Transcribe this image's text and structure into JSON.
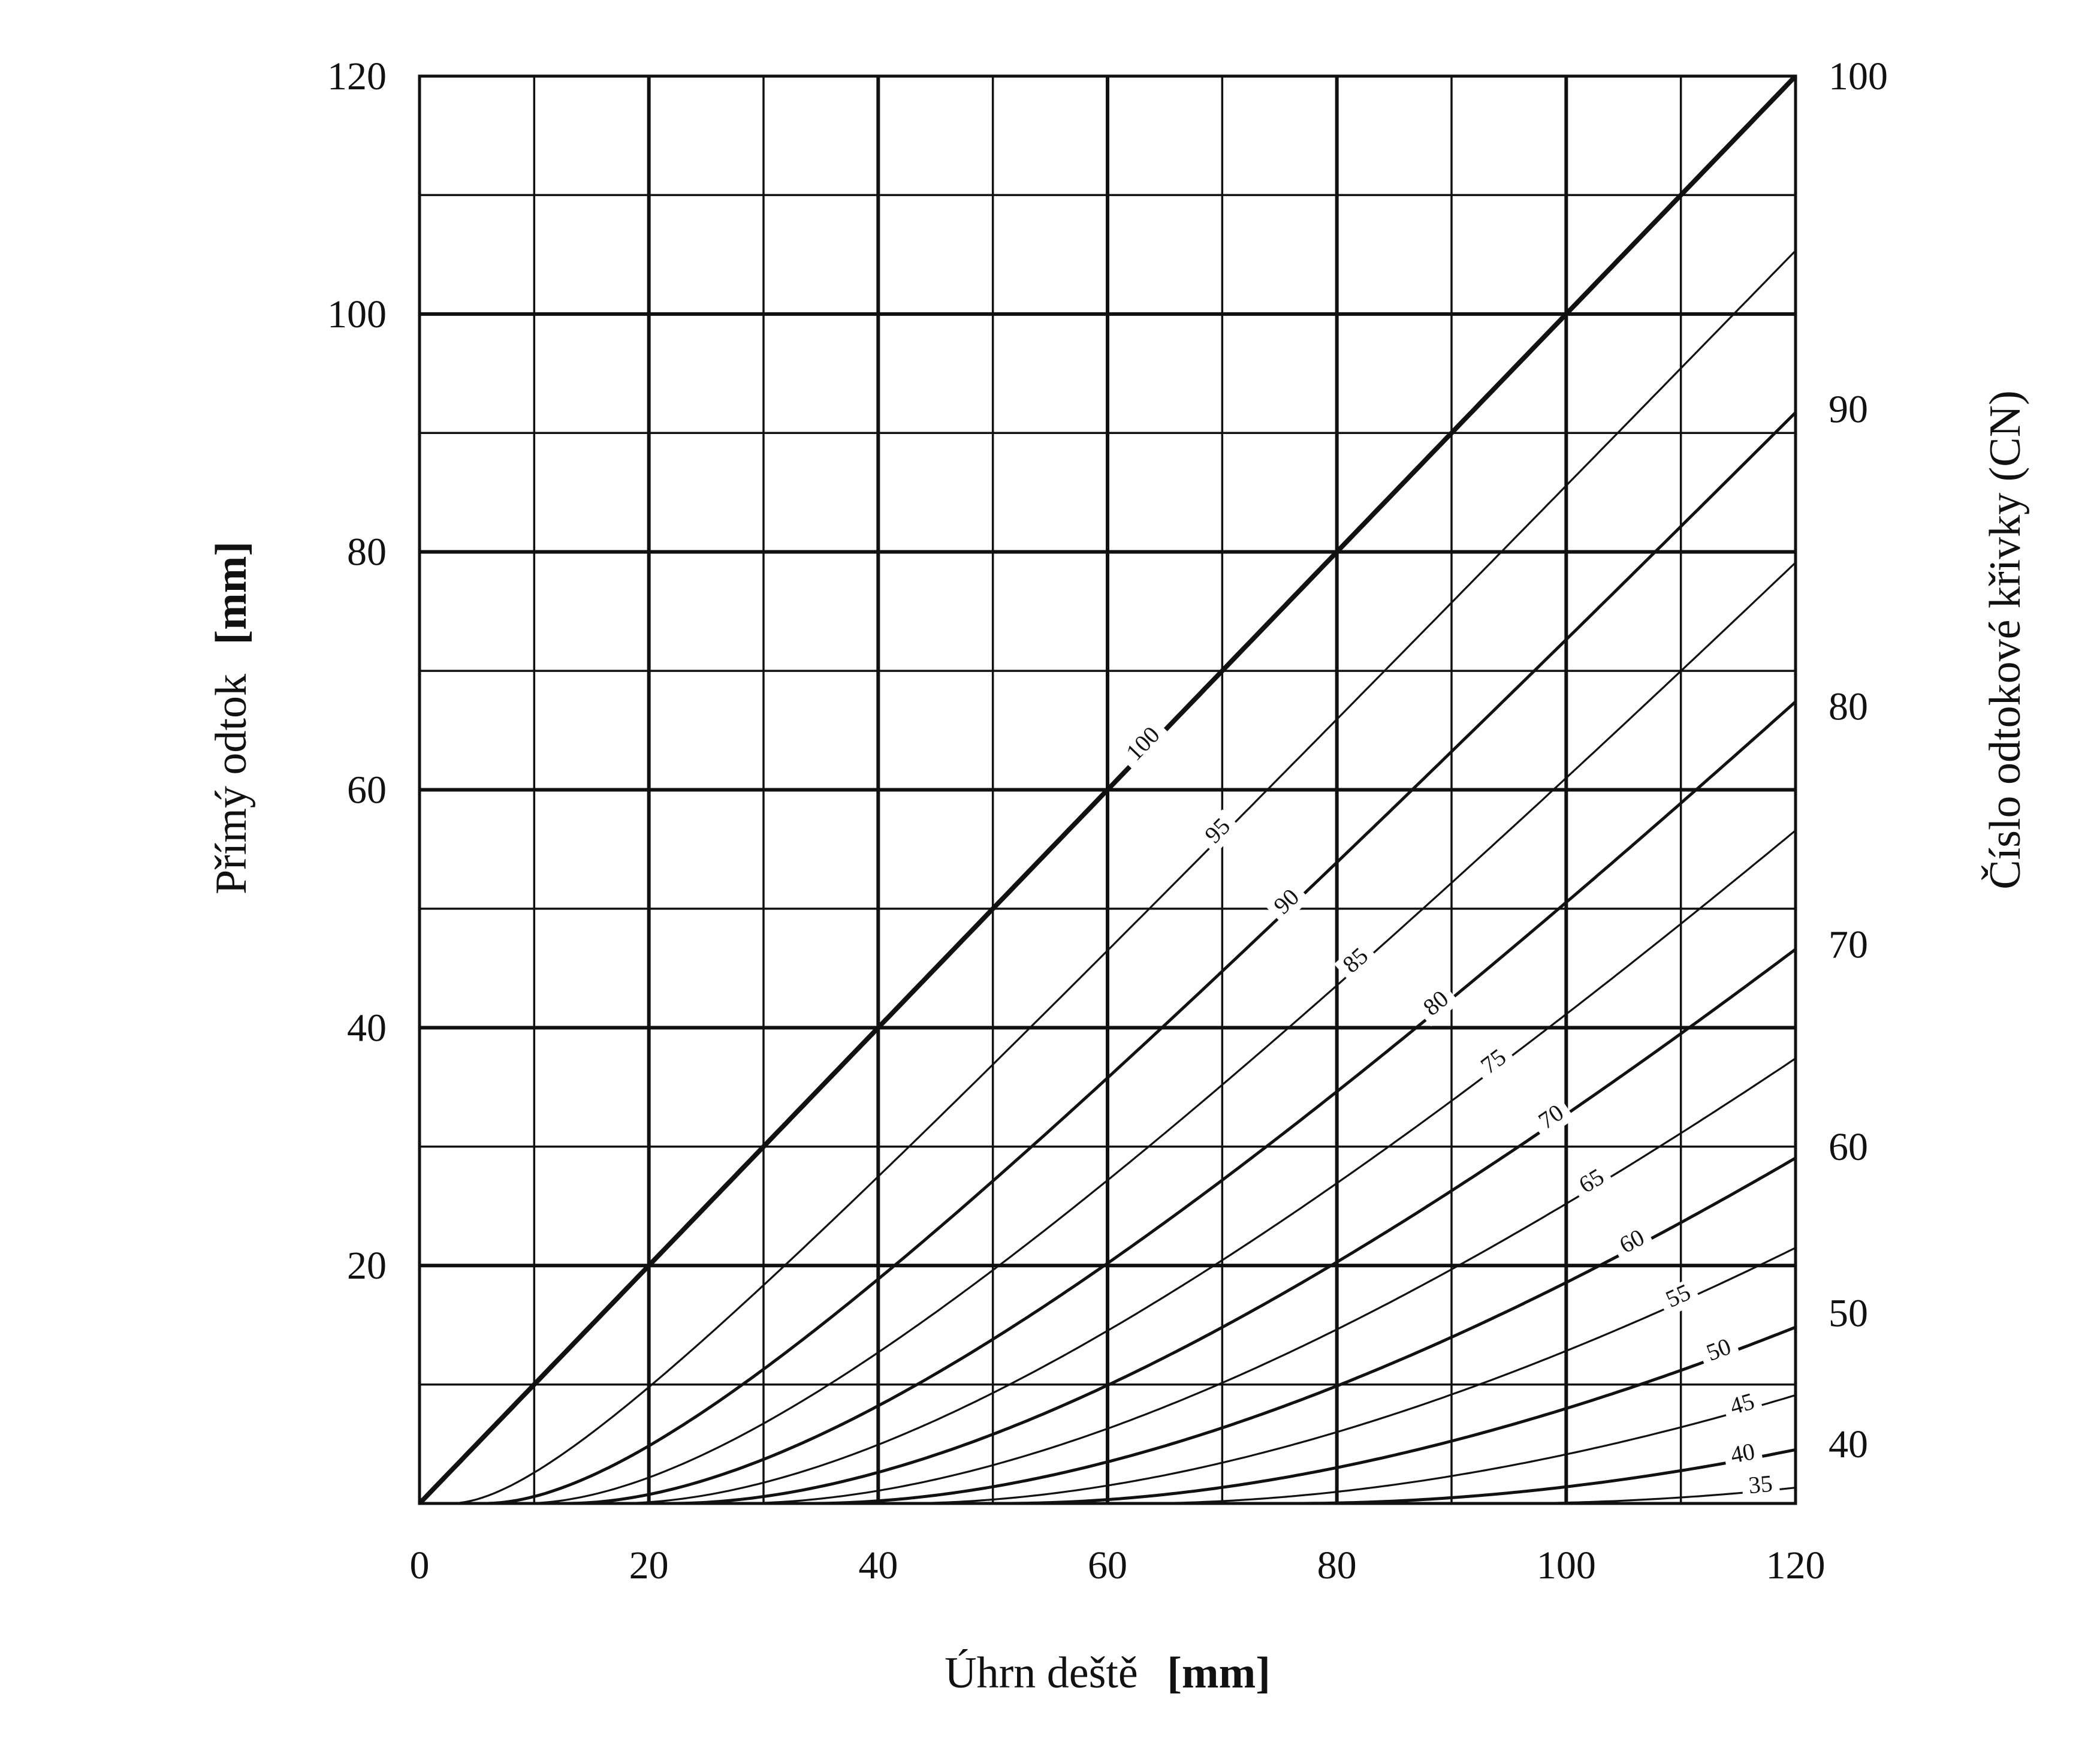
{
  "chart_data": {
    "type": "line",
    "title": "",
    "xlabel": "Úhrn deště",
    "xlabel_unit": "[mm]",
    "ylabel": "Přímý odtok",
    "ylabel_unit": "[mm]",
    "y2label": "Číslo odtokové křivky (CN)",
    "xlim": [
      0,
      120
    ],
    "ylim": [
      0,
      120
    ],
    "grid": true,
    "x_ticks": [
      "0",
      "20",
      "40",
      "60",
      "80",
      "100",
      "120"
    ],
    "y_ticks": [
      "20",
      "40",
      "60",
      "80",
      "100",
      "120"
    ],
    "y2_ticks": [
      {
        "label": "100",
        "at_y": 120
      },
      {
        "label": "90",
        "at_y": 92
      },
      {
        "label": "80",
        "at_y": 67
      },
      {
        "label": "70",
        "at_y": 47
      },
      {
        "label": "60",
        "at_y": 30
      },
      {
        "label": "50",
        "at_y": 16
      },
      {
        "label": "40",
        "at_y": 5
      }
    ],
    "curve_labels": [
      {
        "cn": 100,
        "text": "100",
        "at_x": 63.5
      },
      {
        "cn": 95,
        "text": "95",
        "at_x": 70
      },
      {
        "cn": 90,
        "text": "90",
        "at_x": 76
      },
      {
        "cn": 85,
        "text": "85",
        "at_x": 82
      },
      {
        "cn": 80,
        "text": "80",
        "at_x": 89
      },
      {
        "cn": 75,
        "text": "75",
        "at_x": 94
      },
      {
        "cn": 70,
        "text": "70",
        "at_x": 99
      },
      {
        "cn": 65,
        "text": "65",
        "at_x": 102.5
      },
      {
        "cn": 60,
        "text": "60",
        "at_x": 106
      },
      {
        "cn": 55,
        "text": "55",
        "at_x": 110
      },
      {
        "cn": 50,
        "text": "50",
        "at_x": 113.5
      },
      {
        "cn": 45,
        "text": "45",
        "at_x": 115.5
      },
      {
        "cn": 40,
        "text": "40",
        "at_x": 115.5
      },
      {
        "cn": 35,
        "text": "35",
        "at_x": 117
      }
    ],
    "series": [
      {
        "cn": 100,
        "x": [
          0,
          20,
          40,
          60,
          80,
          100,
          120
        ],
        "y": [
          0,
          20,
          40,
          60,
          80,
          100,
          120
        ]
      },
      {
        "cn": 95,
        "x": [
          0,
          20,
          40,
          60,
          80,
          100,
          120
        ],
        "y": [
          0,
          12.3,
          30.7,
          49.9,
          69.4,
          89.0,
          108.7
        ]
      },
      {
        "cn": 90,
        "x": [
          0,
          20,
          40,
          60,
          80,
          100,
          120
        ],
        "y": [
          0,
          6.8,
          21.9,
          39.4,
          57.6,
          76.3,
          95.1
        ]
      },
      {
        "cn": 85,
        "x": [
          0,
          20,
          40,
          60,
          80,
          100,
          120
        ],
        "y": [
          0,
          3.5,
          15.0,
          30.1,
          46.6,
          63.9,
          81.8
        ]
      },
      {
        "cn": 80,
        "x": [
          0,
          20,
          40,
          60,
          80,
          100,
          120
        ],
        "y": [
          0,
          1.5,
          9.8,
          22.3,
          37.0,
          52.7,
          69.2
        ]
      },
      {
        "cn": 75,
        "x": [
          0,
          20,
          40,
          60,
          80,
          100,
          120
        ],
        "y": [
          0,
          0.4,
          5.9,
          15.9,
          28.6,
          42.6,
          57.6
        ]
      },
      {
        "cn": 70,
        "x": [
          0,
          20,
          40,
          60,
          80,
          100,
          120
        ],
        "y": [
          0,
          0.0,
          3.2,
          10.8,
          21.4,
          33.6,
          47.0
        ]
      },
      {
        "cn": 65,
        "x": [
          0,
          20,
          40,
          60,
          80,
          100,
          120
        ],
        "y": [
          0,
          0,
          1.4,
          6.8,
          15.4,
          25.8,
          37.5
        ]
      },
      {
        "cn": 60,
        "x": [
          0,
          20,
          40,
          60,
          80,
          100,
          120
        ],
        "y": [
          0,
          0,
          0.4,
          3.8,
          10.4,
          18.9,
          29.0
        ]
      },
      {
        "cn": 55,
        "x": [
          0,
          20,
          40,
          60,
          80,
          100,
          120
        ],
        "y": [
          0,
          0,
          0.0,
          1.7,
          6.4,
          13.1,
          21.5
        ]
      },
      {
        "cn": 50,
        "x": [
          0,
          20,
          40,
          60,
          80,
          100,
          120
        ],
        "y": [
          0,
          0,
          0,
          0.5,
          3.4,
          8.4,
          15.0
        ]
      },
      {
        "cn": 45,
        "x": [
          0,
          20,
          40,
          60,
          80,
          100,
          120
        ],
        "y": [
          0,
          0,
          0,
          0.0,
          1.4,
          4.7,
          9.6
        ]
      },
      {
        "cn": 40,
        "x": [
          0,
          20,
          40,
          60,
          80,
          100,
          120
        ],
        "y": [
          0,
          0,
          0,
          0,
          0.3,
          2.1,
          5.4
        ]
      },
      {
        "cn": 35,
        "x": [
          0,
          20,
          40,
          60,
          80,
          100,
          120
        ],
        "y": [
          0,
          0,
          0,
          0,
          0.0,
          0.6,
          2.5
        ]
      }
    ]
  }
}
